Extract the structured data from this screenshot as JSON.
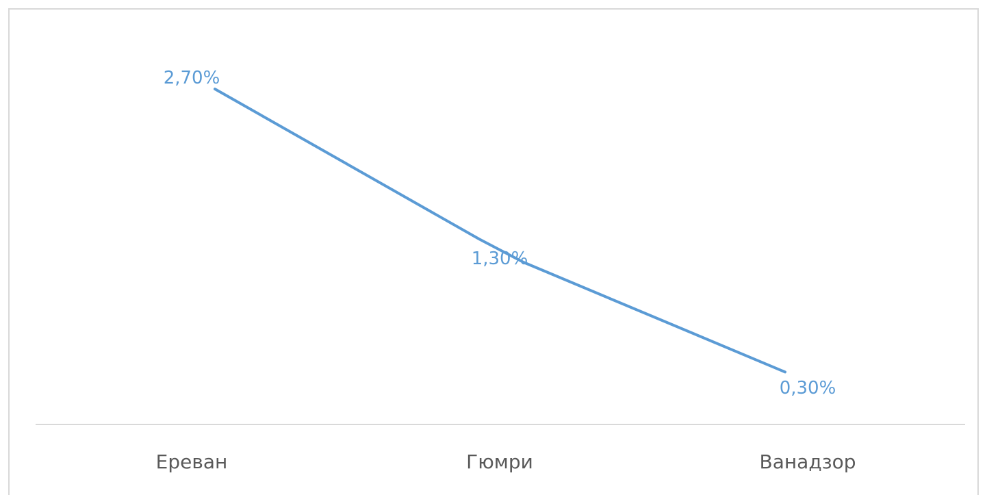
{
  "chart_data": {
    "type": "line",
    "title": "",
    "xlabel": "",
    "ylabel": "",
    "categories": [
      "Ереван",
      "Гюмри",
      "Ванадзор"
    ],
    "series": [
      {
        "values": [
          2.7,
          1.3,
          0.3
        ],
        "data_labels": [
          "2,70%",
          "1,30%",
          "0,30%"
        ],
        "color": "#5b9bd5"
      }
    ],
    "ylim": [
      0,
      3
    ],
    "grid": false,
    "legend": "none",
    "axis_color": "#d9d9d9",
    "tick_label_color": "#595959"
  }
}
